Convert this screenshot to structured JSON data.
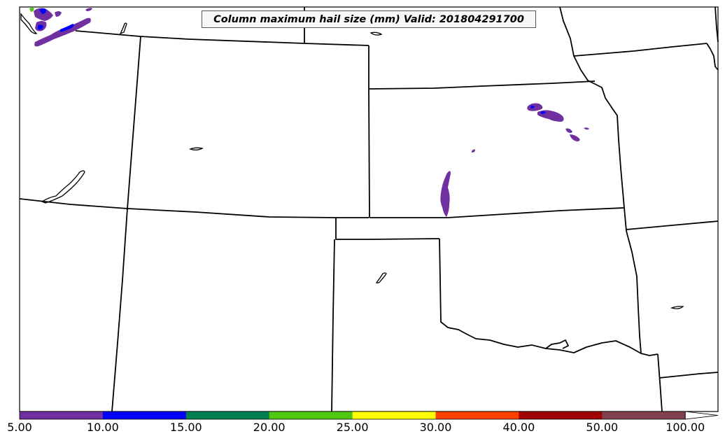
{
  "title": "Column maximum hail size (mm) Valid: 201804291700",
  "colorbar": {
    "ticks": [
      "5.00",
      "10.00",
      "15.00",
      "20.00",
      "25.00",
      "30.00",
      "40.00",
      "50.00",
      "100.00"
    ],
    "colors": [
      "#7030a0",
      "#0000ff",
      "#008050",
      "#50c810",
      "#ffff00",
      "#ff4000",
      "#a00000",
      "#804050"
    ],
    "extend": "max"
  },
  "colors": {
    "boundary": "#000000",
    "hail_5_10": "#7030a0",
    "hail_10_15": "#0000ff",
    "hail_20_25": "#50c810"
  }
}
